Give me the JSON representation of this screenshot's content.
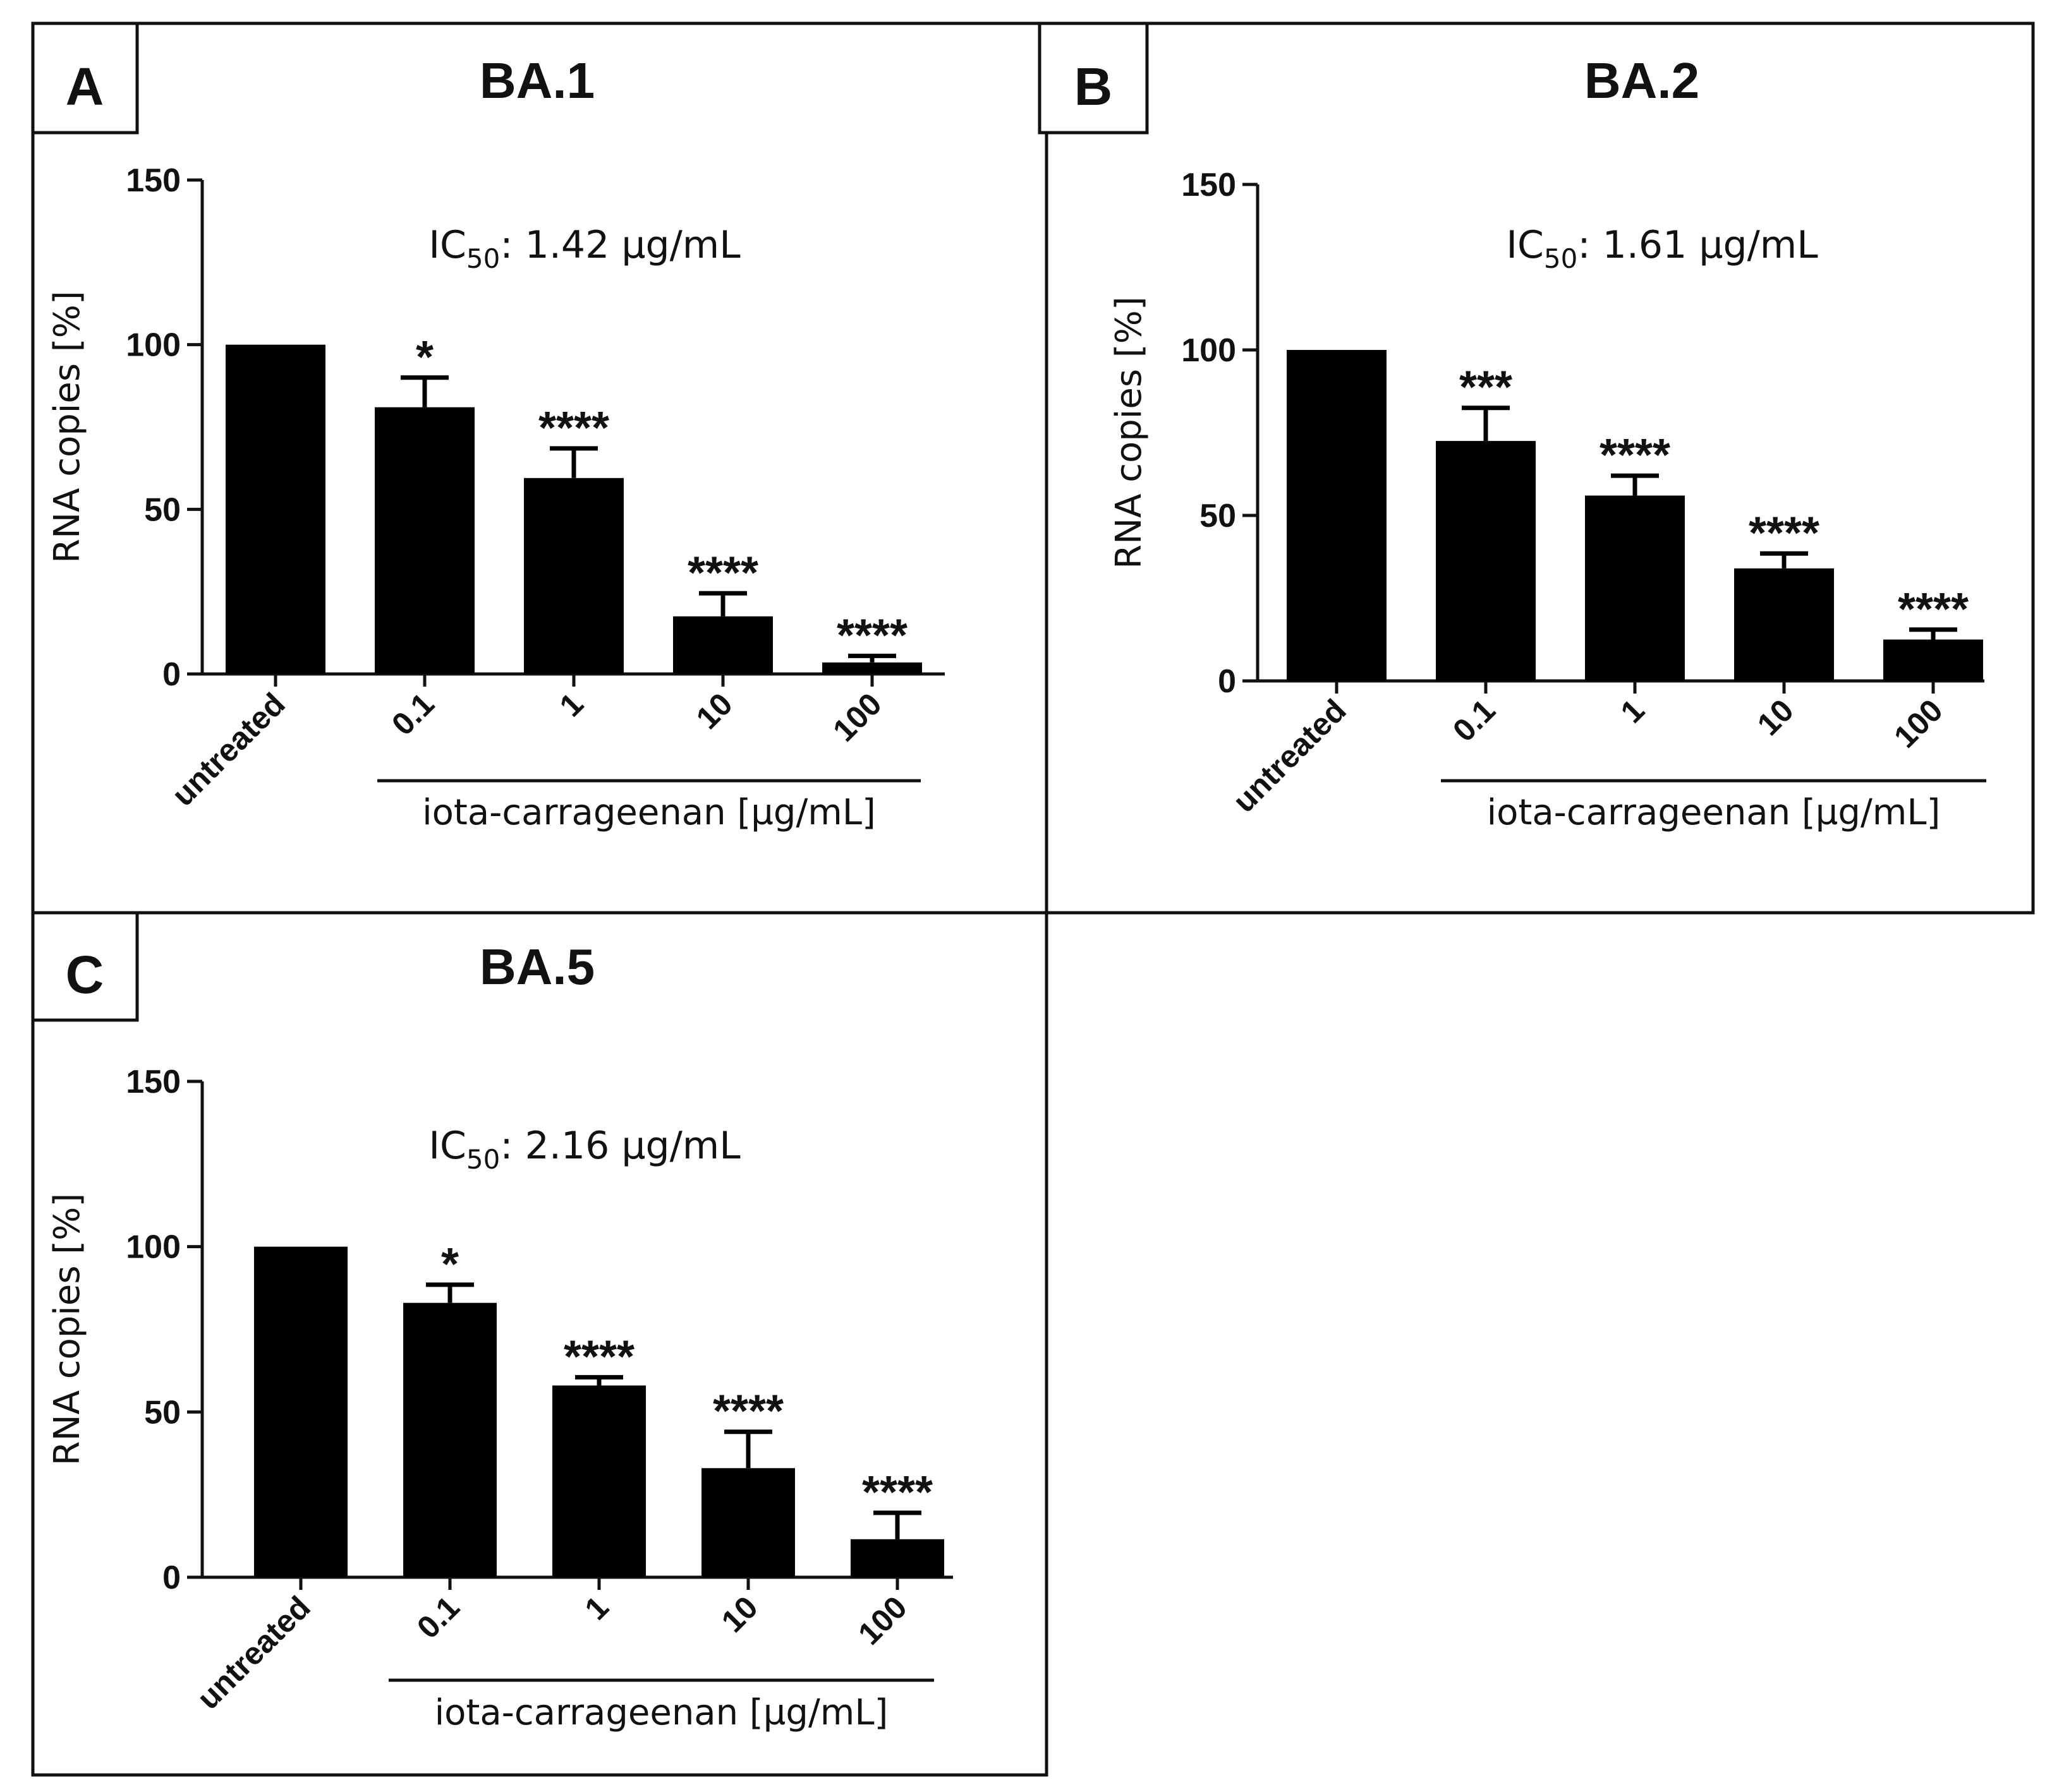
{
  "figure": {
    "panels": [
      {
        "letter": "A",
        "title": "BA.1",
        "ic50_prefix": "IC",
        "ic50_sub": "50",
        "ic50_value": ": 1.42 µg/mL"
      },
      {
        "letter": "B",
        "title": "BA.2",
        "ic50_prefix": "IC",
        "ic50_sub": "50",
        "ic50_value": ": 1.61 µg/mL"
      },
      {
        "letter": "C",
        "title": "BA.5",
        "ic50_prefix": "IC",
        "ic50_sub": "50",
        "ic50_value": ": 2.16 µg/mL"
      }
    ]
  },
  "chart_data": [
    {
      "type": "bar",
      "title": "BA.1",
      "ylabel": "RNA copies [%]",
      "xlabel": "iota-carrageenan [µg/mL]",
      "categories": [
        "untreated",
        "0.1",
        "1",
        "10",
        "100"
      ],
      "values": [
        100,
        81,
        59.5,
        17.5,
        3.5
      ],
      "error": [
        0,
        9,
        9,
        7,
        2
      ],
      "significance": [
        "",
        "*",
        "****",
        "****",
        "****"
      ],
      "ylim": [
        0,
        150
      ],
      "yticks": [
        0,
        50,
        100,
        150
      ],
      "grid": false,
      "color": "#000000"
    },
    {
      "type": "bar",
      "title": "BA.2",
      "ylabel": "RNA copies [%]",
      "xlabel": "iota-carrageenan [µg/mL]",
      "categories": [
        "untreated",
        "0.1",
        "1",
        "10",
        "100"
      ],
      "values": [
        100,
        72.5,
        56,
        34,
        12.5
      ],
      "error": [
        0,
        10,
        6,
        4.5,
        3
      ],
      "significance": [
        "",
        "***",
        "****",
        "****",
        "****"
      ],
      "ylim": [
        0,
        150
      ],
      "yticks": [
        0,
        50,
        100,
        150
      ],
      "grid": false,
      "color": "#000000"
    },
    {
      "type": "bar",
      "title": "BA.5",
      "ylabel": "RNA copies [%]",
      "xlabel": "iota-carrageenan [µg/mL]",
      "categories": [
        "untreated",
        "0.1",
        "1",
        "10",
        "100"
      ],
      "values": [
        100,
        83,
        58,
        33,
        11.5
      ],
      "error": [
        0,
        5.5,
        2.5,
        11,
        8
      ],
      "significance": [
        "",
        "*",
        "****",
        "****",
        "****"
      ],
      "ylim": [
        0,
        150
      ],
      "yticks": [
        0,
        50,
        100,
        150
      ],
      "grid": false,
      "color": "#000000"
    }
  ]
}
